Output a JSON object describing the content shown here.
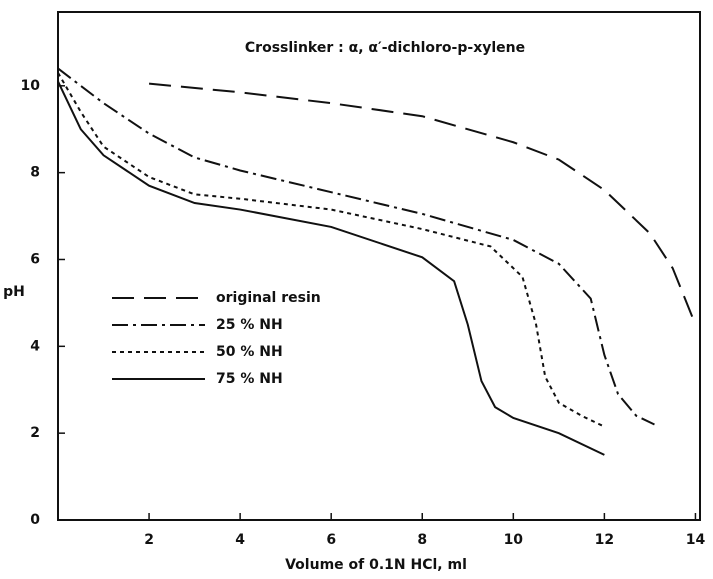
{
  "chart_data": {
    "type": "line",
    "annotation": "Crosslinker : α, α′-dichloro-p-xylene",
    "x_label": "Volume of 0.1N HCl, ml",
    "y_label": "pH",
    "xlim": [
      0,
      14.1
    ],
    "ylim": [
      0,
      11.7
    ],
    "xticks": [
      2,
      4,
      6,
      8,
      10,
      12,
      14
    ],
    "yticks": [
      0,
      2,
      4,
      6,
      8,
      10
    ],
    "legend": "left",
    "series": [
      {
        "name": "original resin",
        "color": "#111111",
        "dash": "22 10",
        "x": [
          2,
          4,
          6,
          8,
          10,
          11,
          12,
          13,
          13.5,
          14
        ],
        "values": [
          10.05,
          9.85,
          9.6,
          9.3,
          8.7,
          8.3,
          7.6,
          6.6,
          5.8,
          4.5
        ]
      },
      {
        "name": "25 % NH",
        "color": "#111111",
        "dash": "16 5 3 5",
        "x": [
          0,
          1,
          2,
          3,
          4,
          6,
          8,
          10,
          11,
          11.7,
          12,
          12.3,
          12.7,
          13.1
        ],
        "values": [
          10.4,
          9.6,
          8.9,
          8.35,
          8.05,
          7.55,
          7.05,
          6.45,
          5.9,
          5.1,
          3.8,
          2.9,
          2.4,
          2.2
        ]
      },
      {
        "name": "50 % NH",
        "color": "#111111",
        "dash": "4 4",
        "x": [
          0,
          0.5,
          1,
          2,
          3,
          4,
          6,
          8,
          9.5,
          10.2,
          10.5,
          10.7,
          11,
          11.5,
          12
        ],
        "values": [
          10.3,
          9.4,
          8.6,
          7.9,
          7.5,
          7.4,
          7.15,
          6.7,
          6.3,
          5.6,
          4.5,
          3.3,
          2.7,
          2.4,
          2.15
        ]
      },
      {
        "name": "75 % NH",
        "color": "#111111",
        "dash": "none",
        "x": [
          0,
          0.5,
          1,
          2,
          3,
          4,
          6,
          8,
          8.7,
          9,
          9.3,
          9.6,
          10,
          11,
          12
        ],
        "values": [
          10.1,
          9.0,
          8.4,
          7.7,
          7.3,
          7.15,
          6.75,
          6.05,
          5.5,
          4.5,
          3.2,
          2.6,
          2.35,
          2.0,
          1.5
        ]
      }
    ]
  }
}
